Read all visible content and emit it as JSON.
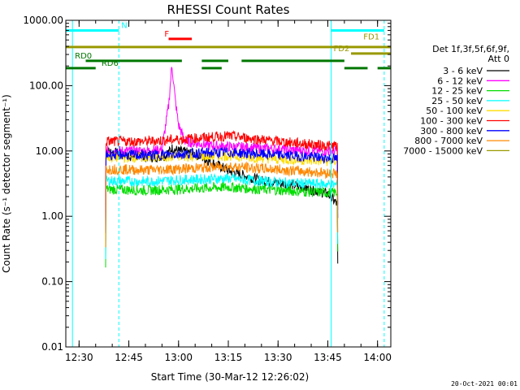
{
  "chart_data": {
    "type": "line",
    "title": "RHESSI Count Rates",
    "xlabel": "Start Time (30-Mar-12 12:26:02)",
    "ylabel": "Count Rate (s⁻¹ detector segment⁻¹)",
    "yscale": "log",
    "ylim": [
      0.01,
      1000
    ],
    "xlim": [
      "12:26",
      "14:04"
    ],
    "x_ticks": [
      "12:30",
      "12:45",
      "13:00",
      "13:15",
      "13:30",
      "13:45",
      "14:00"
    ],
    "y_ticks": [
      "0.01",
      "0.10",
      "1.00",
      "10.00",
      "100.00",
      "1000.00"
    ],
    "legend_header": [
      "Det 1f,3f,5f,6f,9f,",
      "Att 0"
    ],
    "legend_position": "right",
    "series": [
      {
        "name": "3 - 6 keV",
        "color": "#000000",
        "x": [
          "12:38",
          "12:45",
          "12:52",
          "12:56",
          "12:58",
          "13:00",
          "13:05",
          "13:15",
          "13:25",
          "13:35",
          "13:45",
          "13:48"
        ],
        "y": [
          10,
          8.5,
          8,
          8.5,
          11,
          10,
          9,
          5,
          3.5,
          3,
          2.2,
          1.5
        ]
      },
      {
        "name": "6 - 12 keV",
        "color": "#ff00ff",
        "x": [
          "12:38",
          "12:50",
          "12:55",
          "12:57",
          "12:58",
          "12:59",
          "13:00",
          "13:02",
          "13:10",
          "13:25",
          "13:40",
          "13:48"
        ],
        "y": [
          10,
          10,
          10.5,
          50,
          210,
          60,
          25,
          14,
          12,
          11,
          10,
          10
        ]
      },
      {
        "name": "12 - 25 keV",
        "color": "#00dd00",
        "x": [
          "12:38",
          "12:50",
          "13:00",
          "13:15",
          "13:30",
          "13:45",
          "13:48"
        ],
        "y": [
          2.6,
          2.5,
          2.6,
          2.8,
          2.5,
          2.3,
          2.3
        ]
      },
      {
        "name": "25 - 50 keV",
        "color": "#00ffff",
        "x": [
          "12:38",
          "12:50",
          "13:00",
          "13:15",
          "13:30",
          "13:45",
          "13:48"
        ],
        "y": [
          3.5,
          3.4,
          3.6,
          3.8,
          3.3,
          3.1,
          3.0
        ]
      },
      {
        "name": "50 - 100 keV",
        "color": "#ffdd00",
        "x": [
          "12:38",
          "12:50",
          "13:00",
          "13:15",
          "13:30",
          "13:45",
          "13:48"
        ],
        "y": [
          8,
          8,
          8.2,
          8.5,
          7.5,
          7,
          7
        ]
      },
      {
        "name": "100 - 300 keV",
        "color": "#ff0000",
        "x": [
          "12:38",
          "12:50",
          "13:00",
          "13:15",
          "13:30",
          "13:45",
          "13:48"
        ],
        "y": [
          14,
          14,
          15,
          17,
          14,
          12,
          12
        ]
      },
      {
        "name": "300 - 800 keV",
        "color": "#0000ff",
        "x": [
          "12:38",
          "12:50",
          "13:00",
          "13:15",
          "13:30",
          "13:45",
          "13:48"
        ],
        "y": [
          8.8,
          8.6,
          9,
          9.5,
          8.7,
          7.8,
          7.5
        ]
      },
      {
        "name": "800 - 7000 keV",
        "color": "#ff8800",
        "x": [
          "12:38",
          "12:50",
          "13:00",
          "13:15",
          "13:30",
          "13:45",
          "13:48"
        ],
        "y": [
          5.3,
          5.1,
          5.3,
          5.8,
          5.2,
          4.6,
          4.5
        ]
      },
      {
        "name": "7000 - 15000 keV",
        "color": "#999900",
        "x": [],
        "y": []
      }
    ],
    "vertical_lines": [
      {
        "x": "12:28",
        "color": "#00ffff",
        "style": "solid"
      },
      {
        "x": "12:42",
        "color": "#00ffff",
        "style": "dashed"
      },
      {
        "x": "13:46",
        "color": "#00ffff",
        "style": "solid"
      },
      {
        "x": "14:02",
        "color": "#00ffff",
        "style": "dashed"
      }
    ],
    "flag_bars": [
      {
        "color": "#00ffff",
        "segments": [
          [
            "12:26",
            "12:42"
          ],
          [
            "13:46",
            "14:02"
          ]
        ],
        "level": 700
      },
      {
        "color": "#ff0000",
        "segments": [
          [
            "12:57",
            "13:04"
          ]
        ],
        "level": 520
      },
      {
        "color": "#999900",
        "segments": [
          [
            "12:26",
            "14:04"
          ]
        ],
        "level": 390
      },
      {
        "color": "#999900",
        "segments": [
          [
            "13:52",
            "14:04"
          ]
        ],
        "level": 310
      },
      {
        "color": "#007700",
        "segments": [
          [
            "12:32",
            "13:01"
          ]
        ],
        "level": 240
      },
      {
        "color": "#007700",
        "segments": [
          [
            "13:07",
            "13:15"
          ],
          [
            "13:19",
            "13:50"
          ]
        ],
        "level": 240
      },
      {
        "color": "#007700",
        "segments": [
          [
            "12:26",
            "12:35"
          ],
          [
            "13:07",
            "13:13"
          ],
          [
            "13:50",
            "13:57"
          ],
          [
            "14:00",
            "14:04"
          ]
        ],
        "level": 185
      }
    ],
    "annotations": [
      {
        "text": "N",
        "color": "#00ffff",
        "x": "12:42",
        "level": 700
      },
      {
        "text": "F",
        "color": "#ff0000",
        "x": "12:55",
        "level": 520
      },
      {
        "text": "FD1",
        "color": "#999900",
        "x": "13:55",
        "level": 470
      },
      {
        "text": "FD2",
        "color": "#999900",
        "x": "13:46",
        "level": 310
      },
      {
        "text": "RD0",
        "color": "#007700",
        "x": "12:28",
        "level": 240
      },
      {
        "text": "RD6",
        "color": "#007700",
        "x": "12:36",
        "level": 185
      }
    ],
    "timestamp": "20-Oct-2021 00:01"
  }
}
